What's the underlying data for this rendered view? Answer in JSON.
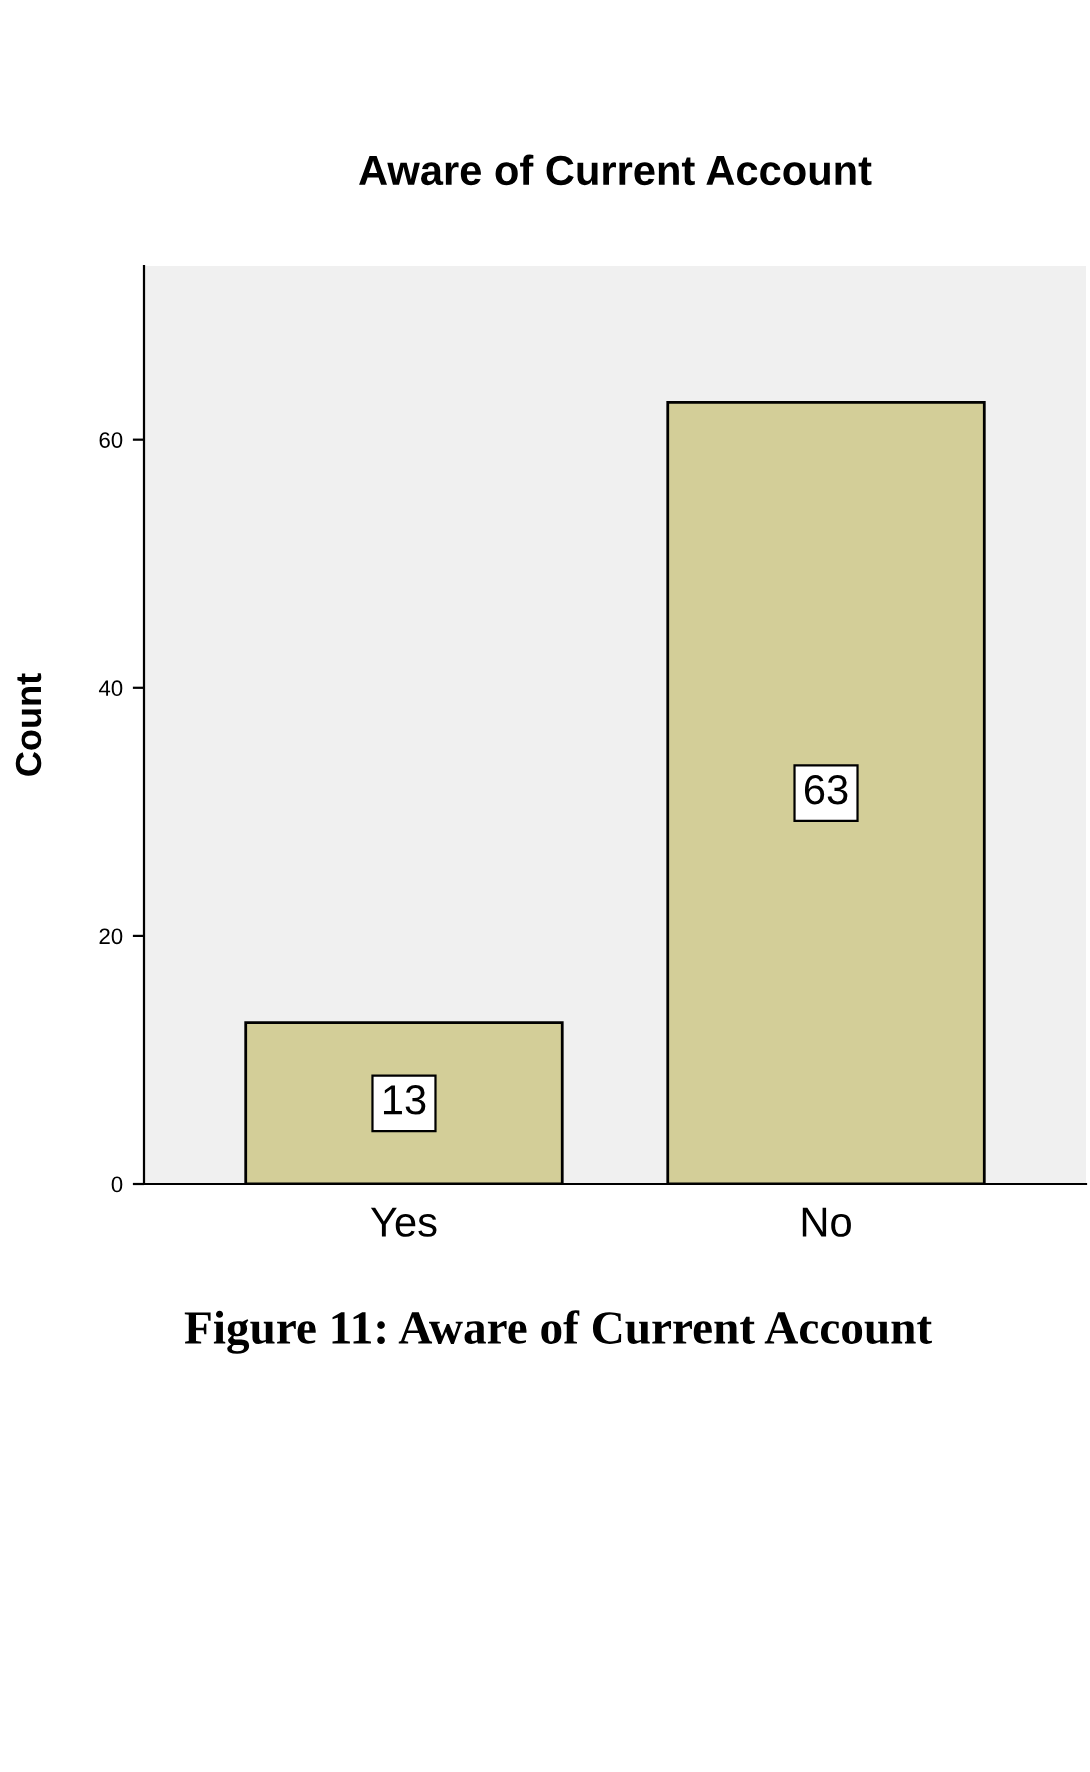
{
  "chart_data": {
    "type": "bar",
    "title": "Aware of Current Account",
    "ylabel": "Count",
    "categories": [
      "Yes",
      "No"
    ],
    "values": [
      13,
      63
    ],
    "color": "#d3ce98",
    "ylim": [
      0,
      74
    ],
    "yticks": [
      0,
      20,
      40,
      60
    ],
    "grid": false,
    "data_labels": true,
    "annotations": [
      "Figure 11: Aware of Current Account"
    ]
  }
}
